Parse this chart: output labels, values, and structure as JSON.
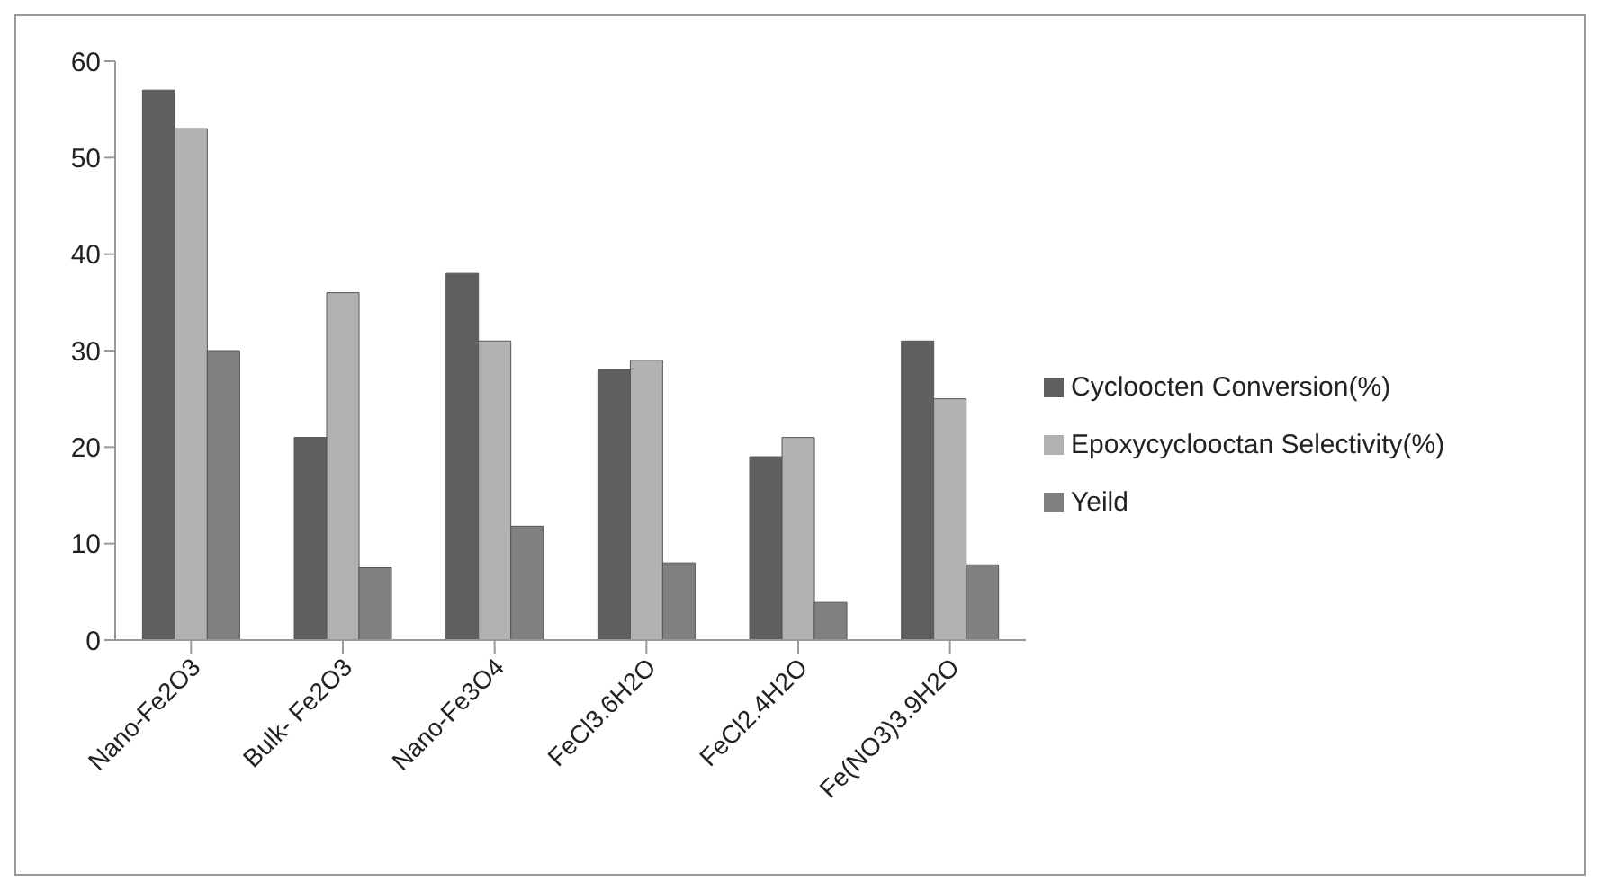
{
  "chart_data": {
    "type": "bar",
    "categories": [
      "Nano-Fe2O3",
      "Bulk- Fe2O3",
      "Nano-Fe3O4",
      "FeCl3.6H2O",
      "FeCl2.4H2O",
      "Fe(NO3)3.9H2O"
    ],
    "series": [
      {
        "name": "Cycloocten Conversion(%)",
        "color": "#5f5f5f",
        "values": [
          57,
          21,
          38,
          28,
          19,
          31
        ]
      },
      {
        "name": "Epoxycyclooctan Selectivity(%)",
        "color": "#b2b2b2",
        "values": [
          53,
          36,
          31,
          29,
          21,
          25
        ]
      },
      {
        "name": "Yeild",
        "color": "#808080",
        "values": [
          30,
          7.5,
          11.8,
          8,
          3.9,
          7.8
        ]
      }
    ],
    "ylim": [
      0,
      60
    ],
    "yticks": [
      0,
      10,
      20,
      30,
      40,
      50,
      60
    ],
    "grid": false,
    "legend": "right"
  }
}
